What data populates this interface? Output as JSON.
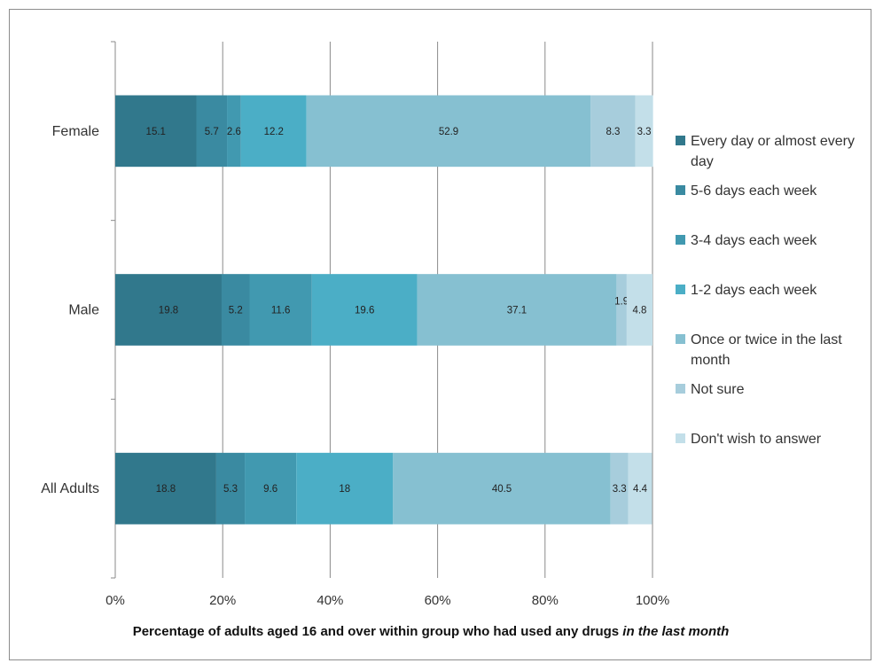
{
  "chart_data": {
    "type": "bar",
    "orientation": "horizontal",
    "stacked": "percent",
    "categories": [
      "Female",
      "Male",
      "All Adults"
    ],
    "series": [
      {
        "name": "Every day or almost every day",
        "color": "#31788c",
        "values": [
          15.1,
          19.8,
          18.8
        ]
      },
      {
        "name": "5-6 days each week",
        "color": "#3a8aa1",
        "values": [
          5.7,
          5.2,
          5.3
        ]
      },
      {
        "name": "3-4 days each week",
        "color": "#4199b0",
        "values": [
          2.6,
          11.6,
          9.6
        ]
      },
      {
        "name": "1-2 days each week",
        "color": "#4baec6",
        "values": [
          12.2,
          19.6,
          18
        ]
      },
      {
        "name": "Once or twice in the last month",
        "color": "#86c0d1",
        "values": [
          52.9,
          37.1,
          40.5
        ]
      },
      {
        "name": "Not sure",
        "color": "#a7cddc",
        "values": [
          8.3,
          1.9,
          3.3
        ]
      },
      {
        "name": "Don't wish to answer",
        "color": "#c3dfe9",
        "values": [
          3.3,
          4.8,
          4.4
        ]
      }
    ],
    "xlabel_main": "Percentage of adults aged 16 and over within group who had used any drugs ",
    "xlabel_italic": "in the last month",
    "ylabel": "",
    "xlim": [
      0,
      100
    ],
    "xticks": [
      "0%",
      "20%",
      "40%",
      "60%",
      "80%",
      "100%"
    ],
    "grid": true,
    "legend_position": "right"
  }
}
